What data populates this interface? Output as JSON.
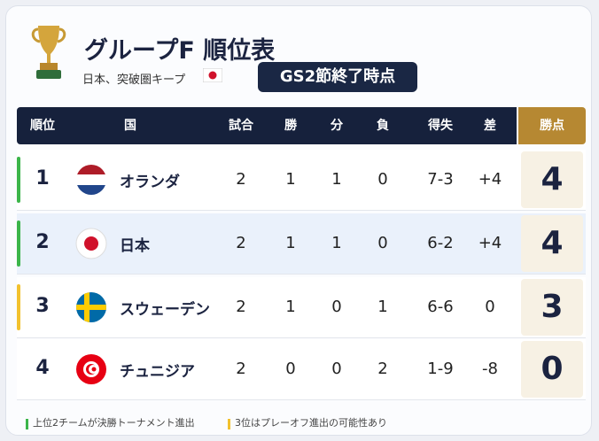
{
  "header": {
    "title": "グループF 順位表",
    "subtitle": "日本、突破圏キープ",
    "badge": "GS2節終了時点"
  },
  "table": {
    "columns": [
      "順位",
      "国",
      "試合",
      "勝",
      "分",
      "負",
      "得失",
      "差",
      "勝点"
    ],
    "rows": [
      [
        "1",
        "オランダ",
        "2",
        "1",
        "1",
        "0",
        "7-3",
        "+4",
        "4"
      ],
      [
        "2",
        "日本",
        "2",
        "1",
        "1",
        "0",
        "6-2",
        "+4",
        "4"
      ],
      [
        "3",
        "スウェーデン",
        "2",
        "1",
        "0",
        "1",
        "6-6",
        "0",
        "3"
      ],
      [
        "4",
        "チュニジア",
        "2",
        "0",
        "0",
        "2",
        "1-9",
        "-8",
        "0"
      ]
    ]
  },
  "footer": {
    "notes": [
      "上位2チームが決勝トーナメント進出",
      "3位はプレーオフ進出の可能性あり"
    ]
  }
}
